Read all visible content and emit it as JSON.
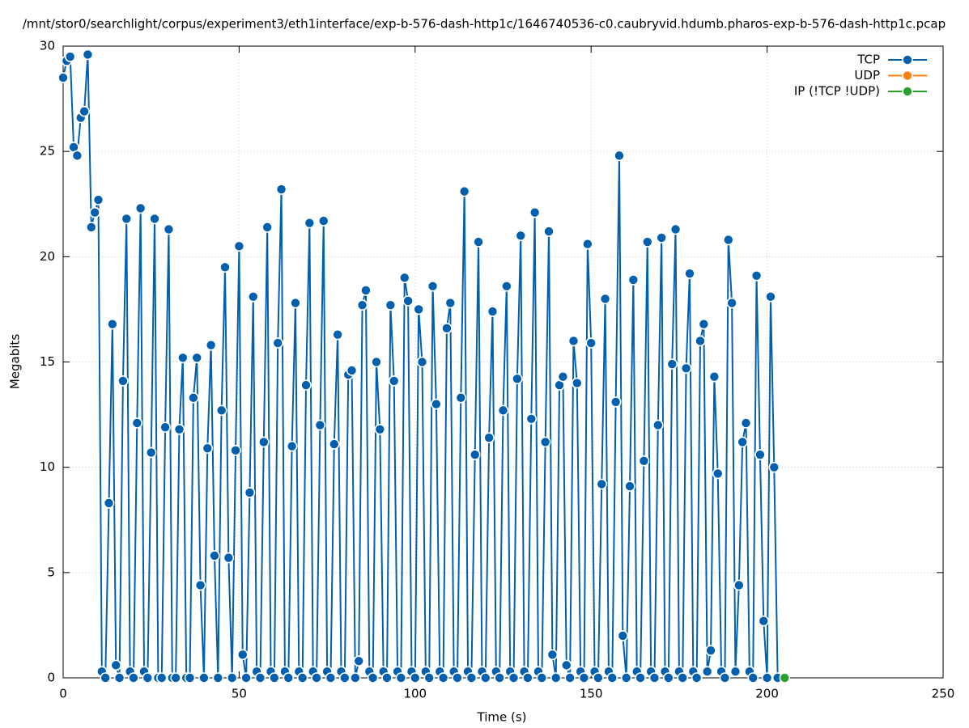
{
  "chart_data": {
    "type": "line",
    "title": "/mnt/stor0/searchlight/corpus/experiment3/eth1interface/exp-b-576-dash-http1c/1646740536-c0.caubryvid.hdumb.pharos-exp-b-576-dash-http1c.pcap",
    "x_label": "Time (s)",
    "y_label": "Megabits",
    "xlim": [
      0,
      250
    ],
    "xticks": [
      0,
      50,
      100,
      150,
      200,
      250
    ],
    "ylim": [
      0,
      30
    ],
    "yticks": [
      0,
      5,
      10,
      15,
      20,
      25,
      30
    ],
    "grid": true,
    "legend": "top-right",
    "series": [
      {
        "name": "TCP",
        "color": "#0060ad",
        "x": [
          0,
          1,
          2,
          3,
          4,
          5,
          6,
          7,
          8,
          9,
          10,
          11,
          12,
          13,
          14,
          15,
          16,
          17,
          18,
          19,
          20,
          21,
          22,
          23,
          24,
          25,
          26,
          27,
          28,
          29,
          30,
          31,
          32,
          33,
          34,
          35,
          36,
          37,
          38,
          39,
          40,
          41,
          42,
          43,
          44,
          45,
          46,
          47,
          48,
          49,
          50,
          51,
          52,
          53,
          54,
          55,
          56,
          57,
          58,
          59,
          60,
          61,
          62,
          63,
          64,
          65,
          66,
          67,
          68,
          69,
          70,
          71,
          72,
          73,
          74,
          75,
          76,
          77,
          78,
          79,
          80,
          81,
          82,
          83,
          84,
          85,
          86,
          87,
          88,
          89,
          90,
          91,
          92,
          93,
          94,
          95,
          96,
          97,
          98,
          99,
          100,
          101,
          102,
          103,
          104,
          105,
          106,
          107,
          108,
          109,
          110,
          111,
          112,
          113,
          114,
          115,
          116,
          117,
          118,
          119,
          120,
          121,
          122,
          123,
          124,
          125,
          126,
          127,
          128,
          129,
          130,
          131,
          132,
          133,
          134,
          135,
          136,
          137,
          138,
          139,
          140,
          141,
          142,
          143,
          144,
          145,
          146,
          147,
          148,
          149,
          150,
          151,
          152,
          153,
          154,
          155,
          156,
          157,
          158,
          159,
          160,
          161,
          162,
          163,
          164,
          165,
          166,
          167,
          168,
          169,
          170,
          171,
          172,
          173,
          174,
          175,
          176,
          177,
          178,
          179,
          180,
          181,
          182,
          183,
          184,
          185,
          186,
          187,
          188,
          189,
          190,
          191,
          192,
          193,
          194,
          195,
          196,
          197,
          198,
          199,
          200,
          201,
          202,
          203
        ],
        "values": [
          28.5,
          29.3,
          29.5,
          25.2,
          24.8,
          26.6,
          26.9,
          29.6,
          21.4,
          22.1,
          22.7,
          0.3,
          0,
          8.3,
          16.8,
          0.6,
          0,
          14.1,
          21.8,
          0.3,
          0,
          12.1,
          22.3,
          0.3,
          0,
          10.7,
          21.8,
          0,
          0,
          11.9,
          21.3,
          0,
          0,
          11.8,
          15.2,
          0,
          0,
          13.3,
          15.2,
          4.4,
          0,
          10.9,
          15.8,
          5.8,
          0,
          12.7,
          19.5,
          5.7,
          0,
          10.8,
          20.5,
          1.1,
          0,
          8.8,
          18.1,
          0.3,
          0,
          11.2,
          21.4,
          0.3,
          0,
          15.9,
          23.2,
          0.3,
          0,
          11.0,
          17.8,
          0.3,
          0,
          13.9,
          21.6,
          0.3,
          0,
          12.0,
          21.7,
          0.3,
          0,
          11.1,
          16.3,
          0.3,
          0,
          14.4,
          14.6,
          0,
          0.8,
          17.7,
          18.4,
          0.3,
          0,
          15.0,
          11.8,
          0.3,
          0,
          17.7,
          14.1,
          0.3,
          0,
          19.0,
          17.9,
          0.3,
          0,
          17.5,
          15.0,
          0.3,
          0,
          18.6,
          13.0,
          0.3,
          0,
          16.6,
          17.8,
          0.3,
          0,
          13.3,
          23.1,
          0.3,
          0,
          10.6,
          20.7,
          0.3,
          0,
          11.4,
          17.4,
          0.3,
          0,
          12.7,
          18.6,
          0.3,
          0,
          14.2,
          21.0,
          0.3,
          0,
          12.3,
          22.1,
          0.3,
          0,
          11.2,
          21.2,
          1.1,
          0,
          13.9,
          14.3,
          0.6,
          0,
          16.0,
          14.0,
          0.3,
          0,
          20.6,
          15.9,
          0.3,
          0,
          9.2,
          18.0,
          0.3,
          0,
          13.1,
          24.8,
          2.0,
          0,
          9.1,
          18.9,
          0.3,
          0,
          10.3,
          20.7,
          0.3,
          0,
          12.0,
          20.9,
          0.3,
          0,
          14.9,
          21.3,
          0.3,
          0,
          14.7,
          19.2,
          0.3,
          0,
          16.0,
          16.8,
          0.3,
          1.3,
          14.3,
          9.7,
          0.3,
          0,
          20.8,
          17.8,
          0.3,
          4.4,
          11.2,
          12.1,
          0.3,
          0,
          19.1,
          10.6,
          2.7,
          0,
          18.1,
          10.0,
          0
        ]
      },
      {
        "name": "UDP",
        "color": "#ff7f0e",
        "x": [],
        "values": []
      },
      {
        "name": "IP (!TCP  !UDP)",
        "color": "#2ca02c",
        "x": [
          205
        ],
        "values": [
          0
        ]
      }
    ]
  }
}
